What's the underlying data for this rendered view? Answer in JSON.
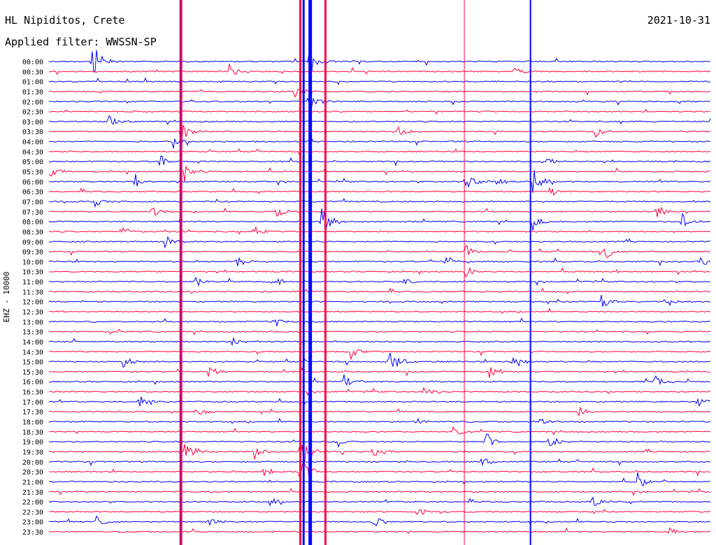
{
  "header": {
    "station": "HL Nipiditos, Crete",
    "date": "2021-10-31",
    "filter": "Applied filter: WWSSN-SP"
  },
  "chart_data": {
    "type": "line",
    "title": "HL Nipiditos, Crete",
    "subtitle": "Applied filter: WWSSN-SP",
    "date": "2021-10-31",
    "ylabel": "EHZ - 10000",
    "colors": [
      "#0000ff",
      "#ff0040"
    ],
    "rows": [
      "00:00",
      "00:30",
      "01:00",
      "01:30",
      "02:00",
      "02:30",
      "03:00",
      "03:30",
      "04:00",
      "04:30",
      "05:00",
      "05:30",
      "06:00",
      "06:30",
      "07:00",
      "07:30",
      "08:00",
      "08:30",
      "09:00",
      "09:30",
      "10:00",
      "10:30",
      "11:00",
      "11:30",
      "12:00",
      "12:30",
      "13:00",
      "13:30",
      "14:00",
      "14:30",
      "15:00",
      "15:30",
      "16:00",
      "16:30",
      "17:00",
      "17:30",
      "18:00",
      "18:30",
      "19:00",
      "19:30",
      "20:00",
      "20:30",
      "21:00",
      "21:30",
      "22:00",
      "22:30",
      "23:00",
      "23:30"
    ],
    "events": [
      {
        "row": 0,
        "x": 0.065,
        "amp": 32
      },
      {
        "row": 0,
        "x": 0.392,
        "amp": 22
      },
      {
        "row": 1,
        "x": 0.272,
        "amp": 12
      },
      {
        "row": 1,
        "x": 0.702,
        "amp": 9
      },
      {
        "row": 3,
        "x": 0.37,
        "amp": 14
      },
      {
        "row": 4,
        "x": 0.392,
        "amp": 18
      },
      {
        "row": 6,
        "x": 0.09,
        "amp": 10
      },
      {
        "row": 7,
        "x": 0.2,
        "amp": 16
      },
      {
        "row": 7,
        "x": 0.528,
        "amp": 11
      },
      {
        "row": 7,
        "x": 0.825,
        "amp": 10
      },
      {
        "row": 8,
        "x": 0.188,
        "amp": 12
      },
      {
        "row": 10,
        "x": 0.165,
        "amp": 14
      },
      {
        "row": 10,
        "x": 0.748,
        "amp": 10
      },
      {
        "row": 11,
        "x": 0.205,
        "amp": 18
      },
      {
        "row": 11,
        "x": 0.0,
        "amp": 10
      },
      {
        "row": 12,
        "x": 0.13,
        "amp": 14
      },
      {
        "row": 12,
        "x": 0.628,
        "amp": 20
      },
      {
        "row": 12,
        "x": 0.675,
        "amp": 10
      },
      {
        "row": 12,
        "x": 0.73,
        "amp": 22
      },
      {
        "row": 13,
        "x": 0.755,
        "amp": 10
      },
      {
        "row": 14,
        "x": 0.068,
        "amp": 8
      },
      {
        "row": 15,
        "x": 0.155,
        "amp": 10
      },
      {
        "row": 15,
        "x": 0.342,
        "amp": 12
      },
      {
        "row": 15,
        "x": 0.918,
        "amp": 12
      },
      {
        "row": 16,
        "x": 0.412,
        "amp": 26
      },
      {
        "row": 16,
        "x": 0.728,
        "amp": 18
      },
      {
        "row": 16,
        "x": 0.957,
        "amp": 16
      },
      {
        "row": 17,
        "x": 0.105,
        "amp": 10
      },
      {
        "row": 17,
        "x": 0.31,
        "amp": 9
      },
      {
        "row": 18,
        "x": 0.175,
        "amp": 12
      },
      {
        "row": 19,
        "x": 0.628,
        "amp": 14
      },
      {
        "row": 19,
        "x": 0.84,
        "amp": 14
      },
      {
        "row": 20,
        "x": 0.285,
        "amp": 10
      },
      {
        "row": 20,
        "x": 0.6,
        "amp": 9
      },
      {
        "row": 20,
        "x": 0.985,
        "amp": 9
      },
      {
        "row": 21,
        "x": 0.628,
        "amp": 12
      },
      {
        "row": 22,
        "x": 0.22,
        "amp": 10
      },
      {
        "row": 22,
        "x": 0.338,
        "amp": 10
      },
      {
        "row": 22,
        "x": 0.535,
        "amp": 9
      },
      {
        "row": 24,
        "x": 0.835,
        "amp": 12
      },
      {
        "row": 24,
        "x": 0.932,
        "amp": 10
      },
      {
        "row": 26,
        "x": 0.34,
        "amp": 9
      },
      {
        "row": 28,
        "x": 0.275,
        "amp": 7
      },
      {
        "row": 29,
        "x": 0.455,
        "amp": 12
      },
      {
        "row": 30,
        "x": 0.11,
        "amp": 10
      },
      {
        "row": 30,
        "x": 0.515,
        "amp": 24
      },
      {
        "row": 30,
        "x": 0.7,
        "amp": 14
      },
      {
        "row": 31,
        "x": 0.665,
        "amp": 16
      },
      {
        "row": 31,
        "x": 0.24,
        "amp": 9
      },
      {
        "row": 32,
        "x": 0.445,
        "amp": 12
      },
      {
        "row": 32,
        "x": 0.915,
        "amp": 12
      },
      {
        "row": 33,
        "x": 0.565,
        "amp": 10
      },
      {
        "row": 34,
        "x": 0.135,
        "amp": 10
      },
      {
        "row": 34,
        "x": 0.98,
        "amp": 10
      },
      {
        "row": 35,
        "x": 0.222,
        "amp": 10
      },
      {
        "row": 35,
        "x": 0.8,
        "amp": 9
      },
      {
        "row": 36,
        "x": 0.55,
        "amp": 9
      },
      {
        "row": 36,
        "x": 0.738,
        "amp": 9
      },
      {
        "row": 37,
        "x": 0.61,
        "amp": 12
      },
      {
        "row": 38,
        "x": 0.66,
        "amp": 18
      },
      {
        "row": 38,
        "x": 0.755,
        "amp": 12
      },
      {
        "row": 38,
        "x": 0.435,
        "amp": 10
      },
      {
        "row": 39,
        "x": 0.205,
        "amp": 22
      },
      {
        "row": 39,
        "x": 0.38,
        "amp": 30
      },
      {
        "row": 39,
        "x": 0.31,
        "amp": 12
      },
      {
        "row": 39,
        "x": 0.49,
        "amp": 10
      },
      {
        "row": 40,
        "x": 0.655,
        "amp": 12
      },
      {
        "row": 41,
        "x": 0.38,
        "amp": 28
      },
      {
        "row": 41,
        "x": 0.325,
        "amp": 9
      },
      {
        "row": 42,
        "x": 0.89,
        "amp": 14
      },
      {
        "row": 44,
        "x": 0.33,
        "amp": 9
      },
      {
        "row": 44,
        "x": 0.82,
        "amp": 10
      },
      {
        "row": 45,
        "x": 0.555,
        "amp": 8
      },
      {
        "row": 46,
        "x": 0.07,
        "amp": 12
      },
      {
        "row": 46,
        "x": 0.24,
        "amp": 9
      },
      {
        "row": 46,
        "x": 0.49,
        "amp": 10
      },
      {
        "row": 47,
        "x": 0.935,
        "amp": 10
      }
    ],
    "spikes": [
      {
        "x": 0.385,
        "color": "#0000ff",
        "width": 3
      },
      {
        "x": 0.395,
        "color": "#0000ff",
        "width": 5
      },
      {
        "x": 0.38,
        "color": "#ff0040",
        "width": 3
      },
      {
        "x": 0.418,
        "color": "#ff0040",
        "width": 3
      },
      {
        "x": 0.728,
        "color": "#0000ff",
        "width": 2
      },
      {
        "x": 0.628,
        "color": "#ff0040",
        "width": 1
      },
      {
        "x": 0.198,
        "color": "#0000ff",
        "width": 1
      },
      {
        "x": 0.2,
        "color": "#ff0040",
        "width": 3
      }
    ]
  }
}
